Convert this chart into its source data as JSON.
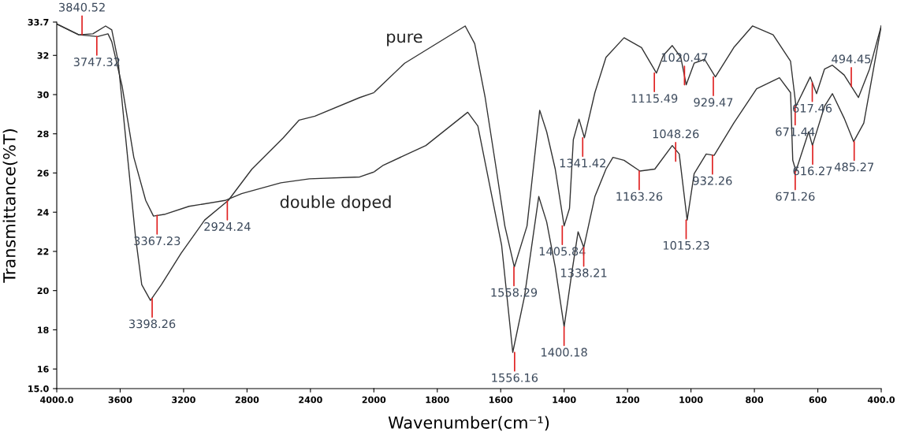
{
  "chart_data": [
    {
      "type": "line",
      "xlabel": "Wavenumber(cm⁻¹)",
      "ylabel": "Transmittance(%T)",
      "xlim": [
        4000,
        2000
      ],
      "ylim": [
        15.0,
        33.7
      ],
      "xticks": [
        {
          "value": 4000,
          "label": "4000.0"
        },
        3600,
        3200,
        2800,
        2400,
        2000
      ],
      "yticks": [
        {
          "value": 15,
          "label": "15.0"
        },
        16,
        18,
        20,
        22,
        24,
        26,
        28,
        30,
        32,
        {
          "value": 33.7,
          "label": "33.7"
        }
      ],
      "grid": false,
      "legend": false,
      "marker": "none",
      "line_style": "solid",
      "series": [
        {
          "color": "#333333",
          "x": [
            4000,
            3861,
            3772,
            3692,
            3653,
            3613,
            3563,
            3504,
            3464,
            3409,
            3340,
            3216,
            3067,
            2918,
            2769,
            2571,
            2471,
            2372,
            2089,
            2000
          ],
          "values": [
            33.6,
            33.05,
            33.1,
            33.5,
            33.3,
            31.7,
            27.6,
            22.8,
            20.3,
            19.5,
            20.3,
            21.9,
            23.6,
            24.6,
            26.2,
            27.8,
            28.7,
            28.9,
            29.85,
            30.1
          ]
        },
        {
          "name": "double doped",
          "color": "#333333",
          "x": [
            4000,
            3861,
            3742,
            3677,
            3653,
            3588,
            3514,
            3439,
            3390,
            3315,
            3166,
            2938,
            2834,
            2586,
            2407,
            2089,
            2000
          ],
          "values": [
            33.6,
            33.05,
            32.96,
            33.1,
            32.7,
            30.45,
            26.8,
            24.6,
            23.8,
            23.9,
            24.3,
            24.6,
            24.95,
            25.5,
            25.7,
            25.8,
            26.05
          ]
        }
      ],
      "annotations": [
        {
          "text": "3747.32",
          "x": 3747.32,
          "y": 32.96
        },
        {
          "text": "3840.52",
          "x": 3840.52,
          "y": 33.06
        },
        {
          "text": "3398.26",
          "x": 3398.26,
          "y": 19.6
        },
        {
          "text": "3367.23",
          "x": 3367.23,
          "y": 23.83
        },
        {
          "text": "2924.24",
          "x": 2924.24,
          "y": 24.56
        }
      ]
    },
    {
      "type": "line",
      "xlim": [
        2000,
        400
      ],
      "ylim": [
        15.0,
        33.7
      ],
      "tick_labels": "x",
      "xticks": [
        1800,
        1600,
        1400,
        1200,
        1000,
        800,
        600,
        {
          "value": 400,
          "label": "400.0"
        }
      ],
      "grid": false,
      "legend": false,
      "marker": "none",
      "line_style": "solid",
      "series": [
        {
          "name": "pure",
          "color": "#333333",
          "x": [
            2000,
            1903,
            1712,
            1682,
            1649,
            1614,
            1587,
            1557,
            1517,
            1477,
            1455,
            1428,
            1400,
            1383,
            1371,
            1353,
            1336,
            1303,
            1268,
            1211,
            1156,
            1109,
            1087,
            1059,
            1032,
            1015,
            990,
            957,
            923,
            865,
            806,
            741,
            686,
            674,
            669,
            624,
            604,
            579,
            554,
            517,
            472,
            437,
            400
          ],
          "values": [
            30.1,
            31.6,
            33.5,
            32.6,
            29.85,
            26.2,
            23.3,
            21.2,
            23.3,
            29.2,
            28.1,
            26.2,
            23.3,
            24.2,
            27.7,
            28.75,
            27.8,
            30.1,
            31.9,
            32.9,
            32.4,
            31.1,
            32.0,
            32.5,
            31.9,
            30.5,
            31.6,
            31.8,
            30.9,
            32.4,
            33.5,
            33.05,
            31.7,
            30.1,
            29.4,
            30.9,
            30.05,
            31.3,
            31.5,
            31.0,
            29.85,
            31.3,
            33.5
          ]
        },
        {
          "color": "#333333",
          "x": [
            2000,
            1970,
            1836,
            1704,
            1672,
            1642,
            1597,
            1562,
            1525,
            1480,
            1455,
            1428,
            1400,
            1375,
            1356,
            1338,
            1303,
            1268,
            1246,
            1211,
            1161,
            1114,
            1059,
            1037,
            1012,
            990,
            952,
            927,
            865,
            793,
            721,
            686,
            679,
            669,
            629,
            617,
            579,
            554,
            517,
            487,
            455,
            400
          ],
          "values": [
            26.05,
            26.4,
            27.4,
            29.1,
            28.4,
            25.96,
            22.3,
            16.85,
            19.7,
            24.8,
            23.5,
            21.2,
            18.15,
            21.0,
            23.0,
            22.2,
            24.8,
            26.2,
            26.8,
            26.65,
            26.1,
            26.2,
            27.4,
            26.97,
            23.6,
            25.96,
            26.97,
            26.9,
            28.55,
            30.3,
            30.86,
            30.1,
            26.65,
            26.1,
            28.1,
            27.4,
            29.4,
            30.05,
            28.8,
            27.6,
            28.55,
            33.5
          ]
        }
      ],
      "annotations": [
        {
          "text": "1558.29",
          "x": 1558.29,
          "y": 21.2
        },
        {
          "text": "1556.16",
          "x": 1556.16,
          "y": 16.85
        },
        {
          "text": "1405.84",
          "x": 1405.84,
          "y": 23.3
        },
        {
          "text": "1400.18",
          "x": 1400.18,
          "y": 18.15
        },
        {
          "text": "1341.42",
          "x": 1341.42,
          "y": 27.8
        },
        {
          "text": "1338.21",
          "x": 1338.21,
          "y": 22.2
        },
        {
          "text": "1163.26",
          "x": 1163.26,
          "y": 26.1
        },
        {
          "text": "1115.49",
          "x": 1115.49,
          "y": 31.1
        },
        {
          "text": "1048.26",
          "x": 1048.26,
          "y": 26.6
        },
        {
          "text": "1020.47",
          "x": 1020.47,
          "y": 30.5
        },
        {
          "text": "1015.23",
          "x": 1015.23,
          "y": 23.6
        },
        {
          "text": "932.26",
          "x": 932.26,
          "y": 26.9
        },
        {
          "text": "929.47",
          "x": 929.47,
          "y": 30.9
        },
        {
          "text": "671.44",
          "x": 671.44,
          "y": 29.4
        },
        {
          "text": "671.26",
          "x": 671.26,
          "y": 26.1
        },
        {
          "text": "617.46",
          "x": 617.46,
          "y": 30.6
        },
        {
          "text": "616.27",
          "x": 616.27,
          "y": 27.4
        },
        {
          "text": "485.27",
          "x": 485.27,
          "y": 27.6
        },
        {
          "text": "494.45",
          "x": 494.45,
          "y": 30.42
        }
      ]
    }
  ]
}
